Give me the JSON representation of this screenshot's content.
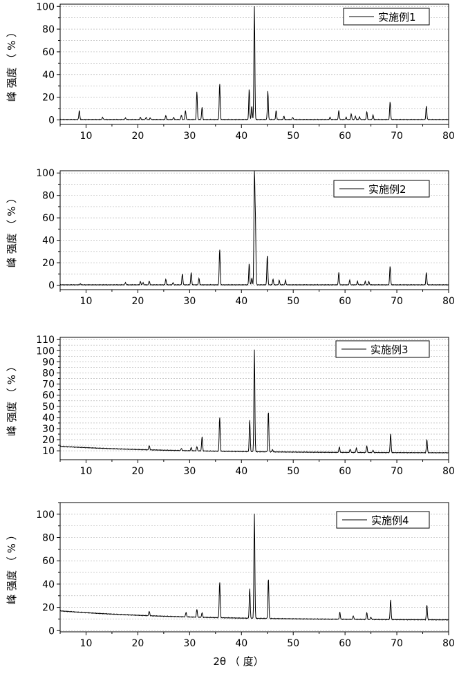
{
  "chart_data": [
    {
      "type": "line",
      "legend": "实施例1",
      "legend_position": "top-right",
      "ylabel": "峰 强度 （ % ）",
      "xlim": [
        5,
        80
      ],
      "ylim": [
        -4,
        102
      ],
      "x_ticks": [
        10,
        20,
        30,
        40,
        50,
        60,
        70,
        80
      ],
      "y_ticks": [
        0,
        20,
        40,
        60,
        80,
        100
      ],
      "grid": "horizontal dashed",
      "baseline": {
        "start": 0.3,
        "end": 0.3
      },
      "peaks": [
        {
          "x": 8.7,
          "y": 8
        },
        {
          "x": 13.2,
          "y": 2
        },
        {
          "x": 17.6,
          "y": 1.5
        },
        {
          "x": 20.5,
          "y": 2
        },
        {
          "x": 21.6,
          "y": 2
        },
        {
          "x": 22.4,
          "y": 1.5
        },
        {
          "x": 25.4,
          "y": 3.5
        },
        {
          "x": 26.9,
          "y": 2
        },
        {
          "x": 28.4,
          "y": 4
        },
        {
          "x": 29.2,
          "y": 8
        },
        {
          "x": 31.4,
          "y": 25
        },
        {
          "x": 32.4,
          "y": 11
        },
        {
          "x": 35.8,
          "y": 32
        },
        {
          "x": 41.5,
          "y": 27
        },
        {
          "x": 42.0,
          "y": 12
        },
        {
          "x": 42.5,
          "y": 100
        },
        {
          "x": 45.1,
          "y": 25
        },
        {
          "x": 46.7,
          "y": 8
        },
        {
          "x": 48.2,
          "y": 3
        },
        {
          "x": 49.9,
          "y": 2
        },
        {
          "x": 57.1,
          "y": 2
        },
        {
          "x": 58.8,
          "y": 8
        },
        {
          "x": 60.2,
          "y": 2
        },
        {
          "x": 61.2,
          "y": 5
        },
        {
          "x": 62.0,
          "y": 3
        },
        {
          "x": 62.8,
          "y": 2.5
        },
        {
          "x": 64.2,
          "y": 7
        },
        {
          "x": 65.4,
          "y": 4
        },
        {
          "x": 68.7,
          "y": 16
        },
        {
          "x": 75.7,
          "y": 12
        }
      ]
    },
    {
      "type": "line",
      "legend": "实施例2",
      "legend_position": "top-right",
      "ylabel": "峰 强度 （ % ）",
      "xlim": [
        5,
        80
      ],
      "ylim": [
        -4,
        102
      ],
      "x_ticks": [
        10,
        20,
        30,
        40,
        50,
        60,
        70,
        80
      ],
      "y_ticks": [
        0,
        20,
        40,
        60,
        80,
        100
      ],
      "grid": "horizontal dashed",
      "baseline": {
        "start": 0.3,
        "end": 0.3
      },
      "peaks": [
        {
          "x": 8.9,
          "y": 1
        },
        {
          "x": 17.6,
          "y": 2
        },
        {
          "x": 20.5,
          "y": 3
        },
        {
          "x": 21.0,
          "y": 2
        },
        {
          "x": 22.2,
          "y": 3.5
        },
        {
          "x": 25.4,
          "y": 5
        },
        {
          "x": 26.8,
          "y": 2
        },
        {
          "x": 28.6,
          "y": 10
        },
        {
          "x": 30.3,
          "y": 11
        },
        {
          "x": 31.8,
          "y": 6
        },
        {
          "x": 35.8,
          "y": 32
        },
        {
          "x": 41.5,
          "y": 19
        },
        {
          "x": 42.0,
          "y": 6
        },
        {
          "x": 42.5,
          "y": 100
        },
        {
          "x": 42.7,
          "y": 55
        },
        {
          "x": 45.0,
          "y": 27
        },
        {
          "x": 46.1,
          "y": 5
        },
        {
          "x": 47.3,
          "y": 4
        },
        {
          "x": 48.5,
          "y": 4
        },
        {
          "x": 58.8,
          "y": 11
        },
        {
          "x": 60.9,
          "y": 4
        },
        {
          "x": 62.4,
          "y": 3
        },
        {
          "x": 63.9,
          "y": 3
        },
        {
          "x": 64.6,
          "y": 3
        },
        {
          "x": 68.7,
          "y": 17
        },
        {
          "x": 75.7,
          "y": 11
        }
      ]
    },
    {
      "type": "line",
      "legend": "实施例3",
      "legend_position": "top-right",
      "ylabel": "峰 强度 （ % ）",
      "xlim": [
        5,
        80
      ],
      "ylim": [
        2,
        112
      ],
      "x_ticks": [
        10,
        20,
        30,
        40,
        50,
        60,
        70,
        80
      ],
      "y_ticks": [
        10,
        20,
        30,
        40,
        50,
        60,
        70,
        80,
        90,
        100,
        110
      ],
      "grid": "horizontal dashed",
      "baseline": {
        "start": 14,
        "end": 8
      },
      "peaks": [
        {
          "x": 22.2,
          "y": 4
        },
        {
          "x": 28.4,
          "y": 2
        },
        {
          "x": 30.3,
          "y": 3
        },
        {
          "x": 31.4,
          "y": 4
        },
        {
          "x": 32.4,
          "y": 13
        },
        {
          "x": 35.8,
          "y": 31
        },
        {
          "x": 41.6,
          "y": 29
        },
        {
          "x": 42.5,
          "y": 92
        },
        {
          "x": 45.2,
          "y": 37
        },
        {
          "x": 46.0,
          "y": 2
        },
        {
          "x": 58.9,
          "y": 5
        },
        {
          "x": 61.0,
          "y": 3
        },
        {
          "x": 62.2,
          "y": 4
        },
        {
          "x": 64.2,
          "y": 6
        },
        {
          "x": 65.4,
          "y": 2
        },
        {
          "x": 68.8,
          "y": 17
        },
        {
          "x": 75.8,
          "y": 12
        }
      ]
    },
    {
      "type": "line",
      "legend": "实施例4",
      "legend_position": "top-right",
      "ylabel": "峰 强度 （ % ）",
      "xlabel": "2θ （ 度）",
      "xlim": [
        5,
        80
      ],
      "ylim": [
        -1,
        110
      ],
      "x_ticks": [
        10,
        20,
        30,
        40,
        50,
        60,
        70,
        80
      ],
      "y_ticks": [
        0,
        20,
        40,
        60,
        80,
        100
      ],
      "grid": "horizontal dashed",
      "baseline": {
        "start": 17,
        "end": 9
      },
      "peaks": [
        {
          "x": 22.2,
          "y": 4
        },
        {
          "x": 29.3,
          "y": 4
        },
        {
          "x": 31.4,
          "y": 7
        },
        {
          "x": 32.4,
          "y": 4
        },
        {
          "x": 35.8,
          "y": 31
        },
        {
          "x": 41.6,
          "y": 26
        },
        {
          "x": 42.5,
          "y": 90
        },
        {
          "x": 45.2,
          "y": 35
        },
        {
          "x": 59.0,
          "y": 6
        },
        {
          "x": 61.6,
          "y": 3
        },
        {
          "x": 64.2,
          "y": 6
        },
        {
          "x": 65.0,
          "y": 2
        },
        {
          "x": 68.8,
          "y": 17
        },
        {
          "x": 75.8,
          "y": 13
        }
      ]
    }
  ]
}
